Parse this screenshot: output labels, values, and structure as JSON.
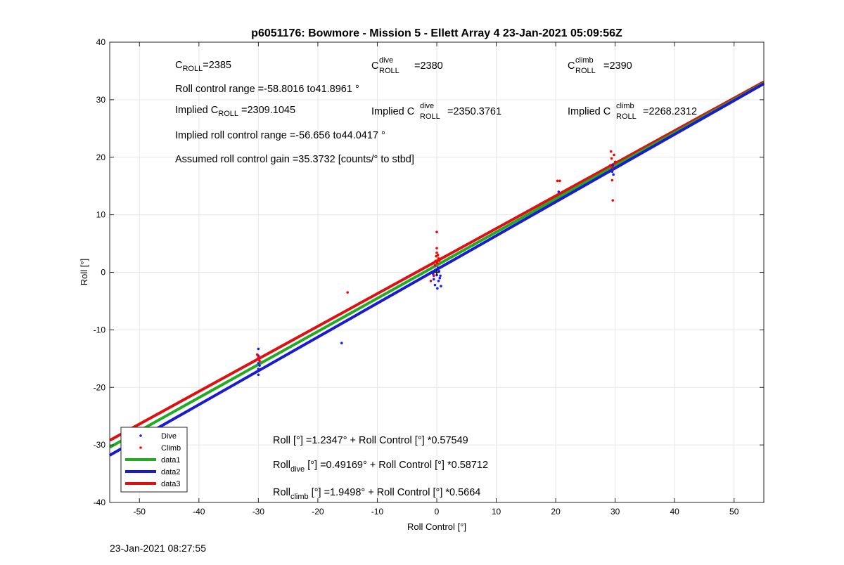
{
  "footer_date": "23-Jan-2021 08:27:55",
  "chart_data": {
    "type": "scatter",
    "title": "p6051176: Bowmore - Mission 5 - Ellett Array 4 23-Jan-2021 05:09:56Z",
    "xlabel": "Roll Control [°]",
    "ylabel": "Roll [°]",
    "xlim": [
      -55,
      55
    ],
    "ylim": [
      -40,
      40
    ],
    "xticks": [
      -50,
      -40,
      -30,
      -20,
      -10,
      0,
      10,
      20,
      30,
      40,
      50
    ],
    "yticks": [
      -40,
      -30,
      -20,
      -10,
      0,
      10,
      20,
      30,
      40
    ],
    "grid": true,
    "legend_position": "bottom-left",
    "legend": [
      {
        "label": "Dive",
        "kind": "points",
        "color": "#1a1aff"
      },
      {
        "label": "Climb",
        "kind": "points",
        "color": "#ff0000"
      },
      {
        "label": "data1",
        "kind": "line",
        "color": "#22aa22"
      },
      {
        "label": "data2",
        "kind": "line",
        "color": "#1a1ad0"
      },
      {
        "label": "data3",
        "kind": "line",
        "color": "#dd1111"
      }
    ],
    "series": [
      {
        "name": "Dive",
        "type": "scatter",
        "color": "#1a1aff",
        "points": [
          [
            -30,
            -13.3
          ],
          [
            -30,
            -14.5
          ],
          [
            -30,
            -15.8
          ],
          [
            -30,
            -16.8
          ],
          [
            -30,
            -17.8
          ],
          [
            -29.8,
            -16.2
          ],
          [
            -16,
            -12.3
          ],
          [
            -0.6,
            -0.3
          ],
          [
            -0.5,
            -1.2
          ],
          [
            -0.3,
            -2.2
          ],
          [
            -0.2,
            0.4
          ],
          [
            0,
            -0.5
          ],
          [
            0.1,
            -2.8
          ],
          [
            0.2,
            0.8
          ],
          [
            0.3,
            -1.5
          ],
          [
            0.4,
            0.2
          ],
          [
            0.5,
            -1.0
          ],
          [
            0.6,
            -0.6
          ],
          [
            0.7,
            -2.4
          ],
          [
            20.5,
            14.0
          ],
          [
            29.5,
            17.5
          ],
          [
            29.6,
            18.6
          ],
          [
            29.7,
            17.0
          ]
        ]
      },
      {
        "name": "Climb",
        "type": "scatter",
        "color": "#ff0000",
        "points": [
          [
            -30.2,
            -14.3
          ],
          [
            -30,
            -14.8
          ],
          [
            -29.8,
            -15.4
          ],
          [
            -15,
            -3.5
          ],
          [
            -1.0,
            -1.5
          ],
          [
            -0.5,
            -0.6
          ],
          [
            -0.3,
            1.2
          ],
          [
            -0.2,
            2.0
          ],
          [
            -0.1,
            2.8
          ],
          [
            0,
            3.4
          ],
          [
            0,
            4.2
          ],
          [
            0,
            7.0
          ],
          [
            0.1,
            1.6
          ],
          [
            0.2,
            3.0
          ],
          [
            0.3,
            2.4
          ],
          [
            0.4,
            2.0
          ],
          [
            20.3,
            15.9
          ],
          [
            20.7,
            15.9
          ],
          [
            29.2,
            18.6
          ],
          [
            29.3,
            21.0
          ],
          [
            29.4,
            19.8
          ],
          [
            29.5,
            18.2
          ],
          [
            29.5,
            16.0
          ],
          [
            29.6,
            12.5
          ],
          [
            29.8,
            20.4
          ],
          [
            30,
            19.2
          ]
        ]
      },
      {
        "name": "data1",
        "type": "line",
        "color": "#22aa22",
        "intercept": 1.2347,
        "slope": 0.57549
      },
      {
        "name": "data2",
        "type": "line",
        "color": "#1a1ad0",
        "intercept": 0.49169,
        "slope": 0.58712
      },
      {
        "name": "data3",
        "type": "line",
        "color": "#dd1111",
        "intercept": 1.9498,
        "slope": 0.5664
      }
    ]
  },
  "annotations": {
    "croll": {
      "base": "C",
      "sub": "ROLL",
      "value": "=2385"
    },
    "croll_dive": {
      "base": "C",
      "sup": "dive",
      "sub": "ROLL",
      "value": "=2380"
    },
    "croll_climb": {
      "base": "C",
      "sup": "climb",
      "sub": "ROLL",
      "value": "=2390"
    },
    "roll_range": "Roll control range =-58.8016 to41.8961 °",
    "implied_croll": {
      "prefix": "Implied C",
      "sub": "ROLL",
      "value": "=2309.1045"
    },
    "implied_dive": {
      "prefix": "Implied C",
      "sup": "dive",
      "sub": "ROLL",
      "value": "=2350.3761"
    },
    "implied_climb": {
      "prefix": "Implied C",
      "sup": "climb",
      "sub": "ROLL",
      "value": "=2268.2312"
    },
    "implied_range": "Implied roll control range =-56.656 to44.0417 °",
    "gain": "Assumed roll control gain =35.3732 [counts/° to stbd]",
    "fit_all": "Roll [°] =1.2347° + Roll Control [°] *0.57549",
    "fit_dive": {
      "base": "Roll",
      "sub": "dive",
      "rest": " [°] =0.49169° + Roll Control [°] *0.58712"
    },
    "fit_climb": {
      "base": "Roll",
      "sub": "climb",
      "rest": " [°] =1.9498° + Roll Control [°] *0.5664"
    }
  }
}
